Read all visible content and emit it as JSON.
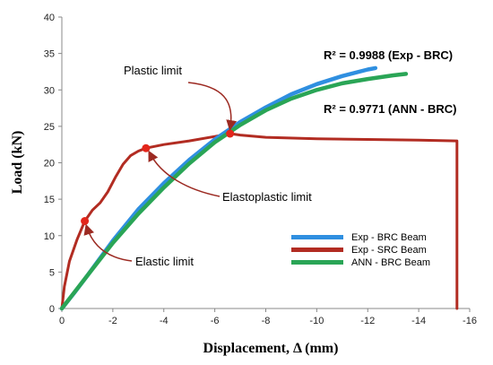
{
  "chart_data": {
    "type": "line",
    "xlabel": "Displacement, Δ  (mm)",
    "ylabel": "Load  (kN)",
    "xlim": [
      0,
      -16
    ],
    "ylim": [
      0,
      40
    ],
    "x_ticks": [
      "0",
      "-2",
      "-4",
      "-6",
      "-8",
      "-10",
      "-12",
      "-14",
      "-16"
    ],
    "y_ticks": [
      "0",
      "5",
      "10",
      "15",
      "20",
      "25",
      "30",
      "35",
      "40"
    ],
    "grid": false,
    "legend_position": "bottom-right",
    "series": [
      {
        "name": "Exp - BRC Beam",
        "color": "#2f8fe0",
        "x": [
          0,
          -0.5,
          -1,
          -2,
          -3,
          -4,
          -5,
          -6,
          -7,
          -8,
          -9,
          -10,
          -11,
          -12,
          -12.3
        ],
        "y": [
          0,
          2.2,
          4.5,
          9.3,
          13.6,
          17.2,
          20.4,
          23.2,
          25.6,
          27.6,
          29.4,
          30.8,
          31.9,
          32.8,
          33.0
        ]
      },
      {
        "name": "Exp - SRC Beam",
        "color": "#b22c22",
        "x": [
          0,
          -0.1,
          -0.3,
          -0.6,
          -0.9,
          -1.2,
          -1.5,
          -1.8,
          -2.1,
          -2.4,
          -2.7,
          -3.0,
          -3.3,
          -4.0,
          -5.0,
          -6.0,
          -6.6,
          -7.0,
          -8.0,
          -10.0,
          -12.0,
          -14.0,
          -15.5,
          -15.5
        ],
        "y": [
          0,
          3,
          6.5,
          9.5,
          12,
          13.5,
          14.5,
          16,
          18,
          19.8,
          21,
          21.6,
          22,
          22.5,
          23,
          23.6,
          24,
          23.8,
          23.5,
          23.3,
          23.2,
          23.1,
          23.0,
          0
        ]
      },
      {
        "name": "ANN - BRC Beam",
        "color": "#2aa556",
        "x": [
          0,
          -1,
          -2,
          -3,
          -4,
          -5,
          -6,
          -7,
          -8,
          -9,
          -10,
          -11,
          -12,
          -13,
          -13.5
        ],
        "y": [
          0,
          4.5,
          9.0,
          13.0,
          16.6,
          19.9,
          22.8,
          25.2,
          27.2,
          28.8,
          30.0,
          30.9,
          31.5,
          32.0,
          32.2
        ]
      }
    ],
    "annotations": [
      {
        "text": "Plastic limit",
        "x": -6.6,
        "y": 24.0
      },
      {
        "text": "Elastoplastic limit",
        "x": -3.3,
        "y": 22.0
      },
      {
        "text": "Elastic limit",
        "x": -0.9,
        "y": 12.0
      }
    ],
    "r2_labels": [
      "R² = 0.9988  (Exp - BRC)",
      "R² = 0.9771  (ANN - BRC)"
    ]
  }
}
